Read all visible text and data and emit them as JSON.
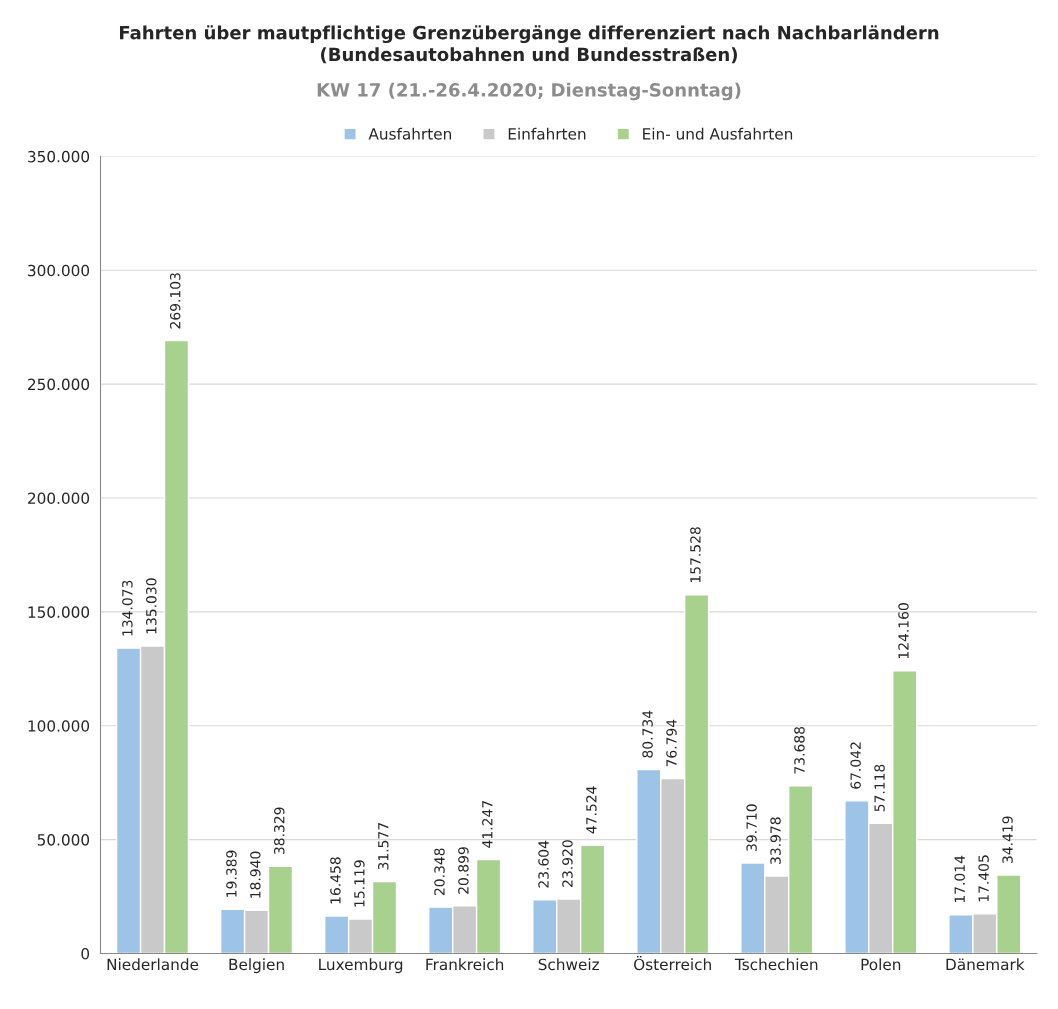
{
  "chart_data": {
    "type": "bar",
    "title": "Fahrten über mautpflichtige Grenzübergänge differenziert nach Nachbarländern\n(Bundesautobahnen und Bundesstraßen)",
    "subtitle": "KW 17 (21.-26.4.2020; Dienstag-Sonntag)",
    "categories": [
      "Niederlande",
      "Belgien",
      "Luxemburg",
      "Frankreich",
      "Schweiz",
      "Österreich",
      "Tschechien",
      "Polen",
      "Dänemark"
    ],
    "series": [
      {
        "name": "Ausfahrten",
        "color": "#9dc3e6",
        "values": [
          134073,
          19389,
          16458,
          20348,
          23604,
          80734,
          39710,
          67042,
          17014
        ],
        "value_labels": [
          "134.073",
          "19.389",
          "16.458",
          "20.348",
          "23.604",
          "80.734",
          "39.710",
          "67.042",
          "17.014"
        ]
      },
      {
        "name": "Einfahrten",
        "color": "#c9c9c9",
        "values": [
          135030,
          18940,
          15119,
          20899,
          23920,
          76794,
          33978,
          57118,
          17405
        ],
        "value_labels": [
          "135.030",
          "18.940",
          "15.119",
          "20.899",
          "23.920",
          "76.794",
          "33.978",
          "57.118",
          "17.405"
        ]
      },
      {
        "name": "Ein- und Ausfahrten",
        "color": "#a9d18e",
        "values": [
          269103,
          38329,
          31577,
          41247,
          47524,
          157528,
          73688,
          124160,
          34419
        ],
        "value_labels": [
          "269.103",
          "38.329",
          "31.577",
          "41.247",
          "47.524",
          "157.528",
          "73.688",
          "124.160",
          "34.419"
        ]
      }
    ],
    "ylim": [
      0,
      350000
    ],
    "yticks": [
      0,
      {
        "value": 50000,
        "label": "50.000"
      },
      {
        "value": 100000,
        "label": "100.000"
      },
      {
        "value": 150000,
        "label": "150.000"
      },
      {
        "value": 200000,
        "label": "200.000"
      },
      {
        "value": 250000,
        "label": "250.000"
      },
      {
        "value": 300000,
        "label": "300.000"
      },
      {
        "value": 350000,
        "label": "350.000"
      }
    ],
    "grid": "y",
    "legend": "top"
  }
}
